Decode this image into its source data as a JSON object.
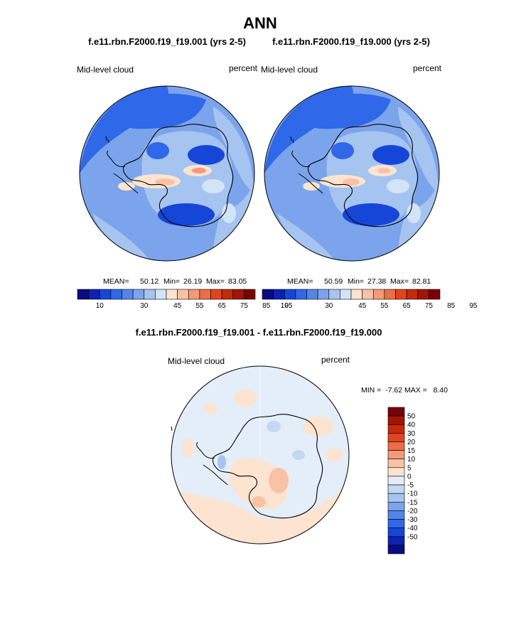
{
  "title": "ANN",
  "panels": [
    {
      "case": "f.e11.rbn.F2000.f19_f19.001 (yrs 2-5)",
      "field": "Mid-level cloud",
      "units": "percent",
      "stats": {
        "mean_label": "MEAN=",
        "mean": "50.12",
        "min_label": "Min=",
        "min": "26.19",
        "max_label": "Max=",
        "max": "83.05"
      }
    },
    {
      "case": "f.e11.rbn.F2000.f19_f19.000 (yrs 2-5)",
      "field": "Mid-level cloud",
      "units": "percent",
      "stats": {
        "mean_label": "MEAN=",
        "mean": "50.59",
        "min_label": "Min=",
        "min": "27.38",
        "max_label": "Max=",
        "max": "82.81"
      }
    }
  ],
  "diff": {
    "title": "f.e11.rbn.F2000.f19_f19.001 - f.e11.rbn.F2000.f19_f19.000",
    "field": "Mid-level cloud",
    "units": "percent",
    "minmax": "MIN =  -7.62 MAX =   8.40"
  },
  "colors": {
    "abs_scale": [
      "#0a0a82",
      "#0b22b2",
      "#1646d8",
      "#2f68e8",
      "#5585e6",
      "#7ba4ec",
      "#a6c4f0",
      "#d2e4f8",
      "#fde4d0",
      "#f8c2a6",
      "#f39a78",
      "#ec6d48",
      "#e2441c",
      "#c42a0c",
      "#a01608",
      "#7a0204"
    ],
    "diff_scale": [
      "#7a0204",
      "#a01608",
      "#c42a0c",
      "#e2441c",
      "#ec6d48",
      "#f39a78",
      "#f8c2a6",
      "#fde4d0",
      "#e3eef8",
      "#c4d8f4",
      "#a6c4f0",
      "#7ba4ec",
      "#5585e6",
      "#2f68e8",
      "#1646d8",
      "#0b22b2",
      "#0a0a82"
    ]
  },
  "chart_data": [
    {
      "type": "heatmap",
      "title": "Mid-level cloud",
      "subtitle": "f.e11.rbn.F2000.f19_f19.001 (yrs 2-5)",
      "units": "percent",
      "projection": "south polar stereographic",
      "mean": 50.12,
      "min": 26.19,
      "max": 83.05,
      "colorbar_levels": [
        5,
        10,
        15,
        20,
        25,
        30,
        35,
        40,
        45,
        50,
        55,
        60,
        65,
        70,
        75,
        80,
        85,
        90,
        95
      ],
      "colorbar_tick_labels": [
        "10",
        "30",
        "45",
        "55",
        "65",
        "75",
        "85",
        "95"
      ],
      "colorbar_tick_values": [
        10,
        30,
        45,
        55,
        65,
        75,
        85,
        95
      ]
    },
    {
      "type": "heatmap",
      "title": "Mid-level cloud",
      "subtitle": "f.e11.rbn.F2000.f19_f19.000 (yrs 2-5)",
      "units": "percent",
      "projection": "south polar stereographic",
      "mean": 50.59,
      "min": 27.38,
      "max": 82.81,
      "colorbar_levels": [
        5,
        10,
        15,
        20,
        25,
        30,
        35,
        40,
        45,
        50,
        55,
        60,
        65,
        70,
        75,
        80,
        85,
        90,
        95
      ],
      "colorbar_tick_labels": [
        "10",
        "30",
        "45",
        "55",
        "65",
        "75",
        "85",
        "95"
      ],
      "colorbar_tick_values": [
        10,
        30,
        45,
        55,
        65,
        75,
        85,
        95
      ]
    },
    {
      "type": "heatmap",
      "title": "Mid-level cloud",
      "subtitle": "f.e11.rbn.F2000.f19_f19.001 - f.e11.rbn.F2000.f19_f19.000",
      "units": "percent",
      "projection": "south polar stereographic",
      "min": -7.62,
      "max": 8.4,
      "colorbar_levels": [
        50,
        40,
        30,
        20,
        15,
        10,
        5,
        0,
        -5,
        -10,
        -15,
        -20,
        -30,
        -40,
        -50
      ],
      "colorbar_tick_labels": [
        "50",
        "40",
        "30",
        "20",
        "15",
        "10",
        "5",
        "0",
        "-5",
        "-10",
        "-15",
        "-20",
        "-30",
        "-40",
        "-50"
      ]
    }
  ]
}
